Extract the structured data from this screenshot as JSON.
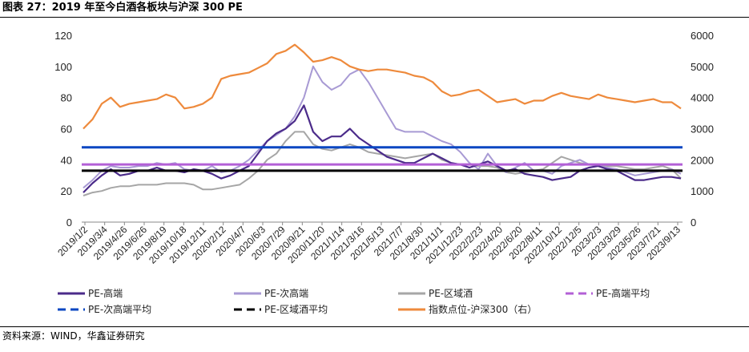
{
  "figure": {
    "title": "图表 27：2019 年至今白酒各板块与沪深 300 PE",
    "source": "资料来源：WIND，华鑫证券研究"
  },
  "chart_data": {
    "type": "line",
    "title": "图表 27：2019 年至今白酒各板块与沪深 300 PE",
    "y_left": {
      "min": 0,
      "max": 120,
      "ticks": [
        0,
        20,
        40,
        60,
        80,
        100,
        120
      ]
    },
    "y_right": {
      "min": 0,
      "max": 6000,
      "ticks": [
        0,
        1000,
        2000,
        3000,
        4000,
        5000,
        6000
      ]
    },
    "x_tick_labels": [
      "2019/1/2",
      "2019/3/4",
      "2019/4/26",
      "2019/6/26",
      "2019/8/19",
      "2019/10/18",
      "2019/12/11",
      "2020/2/12",
      "2020/4/7",
      "2020/6/3",
      "2020/7/29",
      "2020/9/21",
      "2020/11/20",
      "2021/1/14",
      "2021/3/16",
      "2021/5/13",
      "2021/7/7",
      "2021/8/30",
      "2021/11/1",
      "2021/12/23",
      "2022/2/23",
      "2022/4/20",
      "2022/6/20",
      "2022/8/11",
      "2022/10/12",
      "2022/12/5",
      "2023/2/3",
      "2023/3/29",
      "2023/5/26",
      "2023/7/21",
      "2023/9/13"
    ],
    "legend": [
      {
        "name": "PE-高端",
        "color": "#4b2b8a",
        "dash": false
      },
      {
        "name": "PE-次高端",
        "color": "#a89ad4",
        "dash": false
      },
      {
        "name": "PE-区域酒",
        "color": "#a6a6a6",
        "dash": false
      },
      {
        "name": "PE-高端平均",
        "color": "#b35fd6",
        "dash": true
      },
      {
        "name": "PE-次高端平均",
        "color": "#0a47c2",
        "dash": true
      },
      {
        "name": "PE-区域酒平均",
        "color": "#000000",
        "dash": true
      },
      {
        "name": "指数点位-沪深300（右）",
        "color": "#ee8a3c",
        "dash": false
      }
    ],
    "averages": {
      "high_end": 37,
      "sub_high_end": 48,
      "regional": 33
    },
    "series": [
      {
        "name": "PE-高端",
        "axis": "left",
        "color": "#4b2b8a",
        "values": [
          19,
          25,
          30,
          34,
          30,
          31,
          33,
          33,
          35,
          33,
          33,
          32,
          34,
          33,
          31,
          28,
          30,
          33,
          36,
          44,
          52,
          57,
          60,
          65,
          75,
          58,
          52,
          55,
          55,
          60,
          54,
          50,
          46,
          42,
          40,
          38,
          38,
          41,
          44,
          41,
          38,
          37,
          35,
          37,
          39,
          36,
          33,
          34,
          31,
          30,
          29,
          27,
          28,
          29,
          33,
          35,
          36,
          34,
          33,
          30,
          27,
          27,
          28,
          29,
          29,
          28
        ]
      },
      {
        "name": "PE-次高端",
        "axis": "left",
        "color": "#a89ad4",
        "values": [
          22,
          27,
          33,
          36,
          35,
          35,
          36,
          36,
          38,
          37,
          38,
          34,
          33,
          33,
          36,
          32,
          33,
          36,
          40,
          46,
          52,
          56,
          60,
          68,
          80,
          100,
          90,
          85,
          88,
          95,
          98,
          90,
          80,
          70,
          60,
          58,
          58,
          58,
          55,
          52,
          50,
          45,
          38,
          34,
          44,
          36,
          32,
          35,
          38,
          33,
          33,
          31,
          36,
          38,
          40,
          37,
          36,
          35,
          34,
          32,
          30,
          31,
          32,
          33,
          34,
          31
        ]
      },
      {
        "name": "PE-区域酒",
        "axis": "left",
        "color": "#a6a6a6",
        "values": [
          17,
          19,
          20,
          22,
          23,
          23,
          24,
          24,
          24,
          25,
          25,
          25,
          24,
          21,
          21,
          22,
          23,
          24,
          28,
          33,
          40,
          44,
          52,
          58,
          58,
          50,
          47,
          46,
          48,
          50,
          48,
          45,
          44,
          43,
          42,
          41,
          42,
          43,
          44,
          40,
          38,
          37,
          37,
          36,
          36,
          35,
          32,
          31,
          32,
          33,
          34,
          38,
          42,
          40,
          38,
          37,
          37,
          36,
          36,
          35,
          34,
          34,
          35,
          36,
          34,
          28
        ]
      },
      {
        "name": "指数点位-沪深300（右）",
        "axis": "right",
        "color": "#ee8a3c",
        "values": [
          3000,
          3300,
          3800,
          4000,
          3700,
          3800,
          3850,
          3900,
          3950,
          4100,
          4000,
          3650,
          3700,
          3800,
          4000,
          4600,
          4700,
          4750,
          4800,
          4950,
          5100,
          5400,
          5500,
          5700,
          5450,
          5150,
          5200,
          5300,
          5200,
          5000,
          4900,
          4850,
          4900,
          4900,
          4850,
          4800,
          4700,
          4650,
          4500,
          4200,
          4050,
          4100,
          4200,
          4250,
          4050,
          3850,
          3900,
          3950,
          3800,
          3900,
          3900,
          4050,
          4150,
          4050,
          4000,
          3950,
          4100,
          4000,
          3950,
          3900,
          3850,
          3900,
          3950,
          3850,
          3850,
          3650
        ]
      }
    ]
  }
}
